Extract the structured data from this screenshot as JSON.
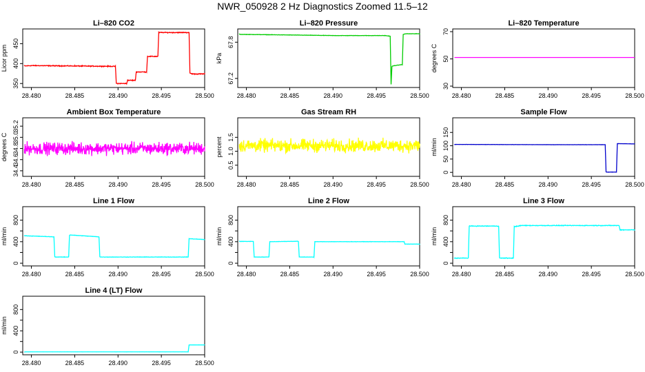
{
  "suptitle": "NWR_050928  2 Hz Diagnostics Zoomed 11.5–12",
  "chart_data": [
    {
      "type": "line",
      "title": "Li–820 CO2",
      "ylabel": "Licor ppm",
      "color": "#ff0000",
      "xlim": [
        28.479,
        28.5
      ],
      "ylim": [
        340,
        487
      ],
      "xticks": [
        28.48,
        28.485,
        28.49,
        28.495,
        28.5
      ],
      "xticklabels": [
        "28.480",
        "28.485",
        "28.490",
        "28.495",
        "28.500"
      ],
      "yticks": [
        350,
        400,
        450
      ],
      "yticklabels": [
        "350",
        "400",
        "450"
      ],
      "noise": 1.5,
      "x": [
        28.4792,
        28.48,
        28.485,
        28.4897,
        28.4898,
        28.491,
        28.4911,
        28.492,
        28.4921,
        28.4933,
        28.4934,
        28.4946,
        28.4947,
        28.4982,
        28.4983,
        28.4986,
        28.5
      ],
      "y": [
        394,
        395,
        394,
        393,
        350,
        350,
        358,
        358,
        379,
        379,
        418,
        418,
        478,
        478,
        376,
        374,
        374
      ]
    },
    {
      "type": "line",
      "title": "Li–820 Pressure",
      "ylabel": "kPa",
      "color": "#00cc00",
      "xlim": [
        28.479,
        28.5
      ],
      "ylim": [
        67.05,
        68.02
      ],
      "xticks": [
        28.48,
        28.485,
        28.49,
        28.495,
        28.5
      ],
      "xticklabels": [
        "28.480",
        "28.485",
        "28.490",
        "28.495",
        "28.500"
      ],
      "yticks": [
        67.2,
        67.8
      ],
      "yticklabels": [
        "67.2",
        "67.8"
      ],
      "noise": 0.004,
      "x": [
        28.4792,
        28.485,
        28.49,
        28.496,
        28.4966,
        28.4967,
        28.4968,
        28.497,
        28.498,
        28.4981,
        28.4984,
        28.499,
        28.5
      ],
      "y": [
        67.93,
        67.92,
        67.91,
        67.91,
        67.9,
        67.1,
        67.4,
        67.41,
        67.43,
        67.93,
        67.94,
        67.94,
        67.94
      ]
    },
    {
      "type": "line",
      "title": "Li–820 Temperature",
      "ylabel": "degrees C",
      "color": "#ff00ff",
      "xlim": [
        28.479,
        28.5
      ],
      "ylim": [
        29,
        72
      ],
      "xticks": [
        28.48,
        28.485,
        28.49,
        28.495,
        28.5
      ],
      "xticklabels": [
        "28.480",
        "28.485",
        "28.490",
        "28.495",
        "28.500"
      ],
      "yticks": [
        30,
        50,
        70
      ],
      "yticklabels": [
        "30",
        "50",
        "70"
      ],
      "noise": 0,
      "x": [
        28.4792,
        28.5
      ],
      "y": [
        51,
        51
      ]
    },
    {
      "type": "line",
      "title": "Ambient Box Temperature",
      "ylabel": "degrees C",
      "color": "#ff00ff",
      "xlim": [
        28.479,
        28.5
      ],
      "ylim": [
        34.3,
        35.35
      ],
      "xticks": [
        28.48,
        28.485,
        28.49,
        28.495,
        28.5
      ],
      "xticklabels": [
        "28.480",
        "28.485",
        "28.490",
        "28.495",
        "28.500"
      ],
      "yticks": [
        34.4,
        34.6,
        34.8,
        35.0,
        35.2
      ],
      "yticklabels": [
        "34.4",
        "34.6",
        "34.8",
        "35.0",
        "35.2"
      ],
      "noise": 0.16,
      "x": [
        28.4792,
        28.5
      ],
      "y": [
        34.8,
        34.8
      ]
    },
    {
      "type": "line",
      "title": "Gas Stream RH",
      "ylabel": "percent",
      "color": "#ffff00",
      "xlim": [
        28.479,
        28.5
      ],
      "ylim": [
        0.1,
        2.2
      ],
      "xticks": [
        28.48,
        28.485,
        28.49,
        28.495,
        28.5
      ],
      "xticklabels": [
        "28.480",
        "28.485",
        "28.490",
        "28.495",
        "28.500"
      ],
      "yticks": [
        0.5,
        1.0,
        1.5
      ],
      "yticklabels": [
        "0.5",
        "1.0",
        "1.5"
      ],
      "noise": 0.34,
      "x": [
        28.4792,
        28.5
      ],
      "y": [
        1.2,
        1.2
      ]
    },
    {
      "type": "line",
      "title": "Sample Flow",
      "ylabel": "ml/min",
      "color": "#0000cc",
      "xlim": [
        28.479,
        28.5
      ],
      "ylim": [
        -15,
        205
      ],
      "xticks": [
        28.48,
        28.485,
        28.49,
        28.495,
        28.5
      ],
      "xticklabels": [
        "28.480",
        "28.485",
        "28.490",
        "28.495",
        "28.500"
      ],
      "yticks": [
        0,
        50,
        100,
        150
      ],
      "yticklabels": [
        "0",
        "50",
        "100",
        "150"
      ],
      "noise": 0.6,
      "x": [
        28.4792,
        28.49,
        28.4966,
        28.4967,
        28.4979,
        28.498,
        28.5
      ],
      "y": [
        105,
        104,
        104,
        1,
        1,
        108,
        107
      ]
    },
    {
      "type": "line",
      "title": "Line 1 Flow",
      "ylabel": "ml/min",
      "color": "#00ffff",
      "xlim": [
        28.479,
        28.5
      ],
      "ylim": [
        -50,
        1050
      ],
      "xticks": [
        28.48,
        28.485,
        28.49,
        28.495,
        28.5
      ],
      "xticklabels": [
        "28.480",
        "28.485",
        "28.490",
        "28.495",
        "28.500"
      ],
      "yticks": [
        0,
        200,
        400,
        600,
        800
      ],
      "yticklabels": [
        "0",
        "400",
        "800"
      ],
      "noise": 5,
      "x": [
        28.4792,
        28.4826,
        28.4827,
        28.4843,
        28.4844,
        28.4878,
        28.4879,
        28.4981,
        28.4982,
        28.5
      ],
      "y": [
        510,
        490,
        115,
        115,
        525,
        490,
        115,
        115,
        455,
        440
      ]
    },
    {
      "type": "line",
      "title": "Line 2 Flow",
      "ylabel": "ml/min",
      "color": "#00ffff",
      "xlim": [
        28.479,
        28.5
      ],
      "ylim": [
        -50,
        1050
      ],
      "xticks": [
        28.48,
        28.485,
        28.49,
        28.495,
        28.5
      ],
      "xticklabels": [
        "28.480",
        "28.485",
        "28.490",
        "28.495",
        "28.500"
      ],
      "yticks": [
        0,
        200,
        400,
        600,
        800
      ],
      "yticklabels": [
        "0",
        "400",
        "800"
      ],
      "noise": 4,
      "x": [
        28.4792,
        28.4808,
        28.4809,
        28.4826,
        28.4827,
        28.486,
        28.4861,
        28.4878,
        28.4879,
        28.4982,
        28.4983,
        28.5
      ],
      "y": [
        405,
        405,
        115,
        115,
        400,
        408,
        115,
        115,
        400,
        400,
        355,
        355
      ]
    },
    {
      "type": "line",
      "title": "Line 3 Flow",
      "ylabel": "ml/min",
      "color": "#00ffff",
      "xlim": [
        28.479,
        28.5
      ],
      "ylim": [
        -50,
        1050
      ],
      "xticks": [
        28.48,
        28.485,
        28.49,
        28.495,
        28.5
      ],
      "xticklabels": [
        "28.480",
        "28.485",
        "28.490",
        "28.495",
        "28.500"
      ],
      "yticks": [
        0,
        200,
        400,
        600,
        800
      ],
      "yticklabels": [
        "0",
        "400",
        "800"
      ],
      "noise": 9,
      "x": [
        28.4792,
        28.4808,
        28.4809,
        28.4843,
        28.4844,
        28.486,
        28.4861,
        28.487,
        28.4982,
        28.4983,
        28.5
      ],
      "y": [
        95,
        95,
        690,
        690,
        95,
        95,
        680,
        700,
        700,
        620,
        620
      ]
    },
    {
      "type": "line",
      "title": "Line 4 (LT) Flow",
      "ylabel": "ml/min",
      "color": "#00ffff",
      "xlim": [
        28.479,
        28.5
      ],
      "ylim": [
        -50,
        1050
      ],
      "xticks": [
        28.48,
        28.485,
        28.49,
        28.495,
        28.5
      ],
      "xticklabels": [
        "28.480",
        "28.485",
        "28.490",
        "28.495",
        "28.500"
      ],
      "yticks": [
        0,
        200,
        400,
        600,
        800
      ],
      "yticklabels": [
        "0",
        "400",
        "800"
      ],
      "noise": 1,
      "x": [
        28.4792,
        28.4981,
        28.4982,
        28.5
      ],
      "y": [
        5,
        5,
        135,
        135
      ]
    }
  ]
}
